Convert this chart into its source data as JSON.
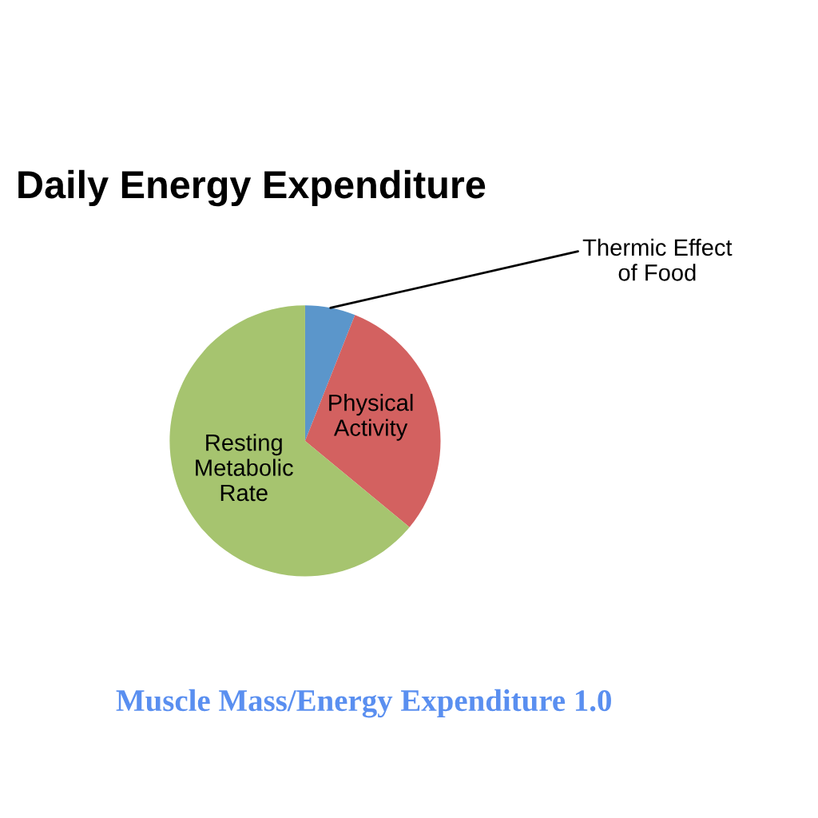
{
  "chart_data": {
    "type": "pie",
    "title": "Daily Energy Expenditure",
    "categories": [
      "Thermic Effect\nof Food",
      "Physical\nActivity",
      "Resting\nMetabolic\nRate"
    ],
    "values": [
      6,
      30,
      64
    ],
    "colors": [
      "#5b96cb",
      "#d36160",
      "#a6c46f"
    ],
    "annotations": [
      "Muscle Mass/Energy Expenditure 1.0"
    ]
  }
}
